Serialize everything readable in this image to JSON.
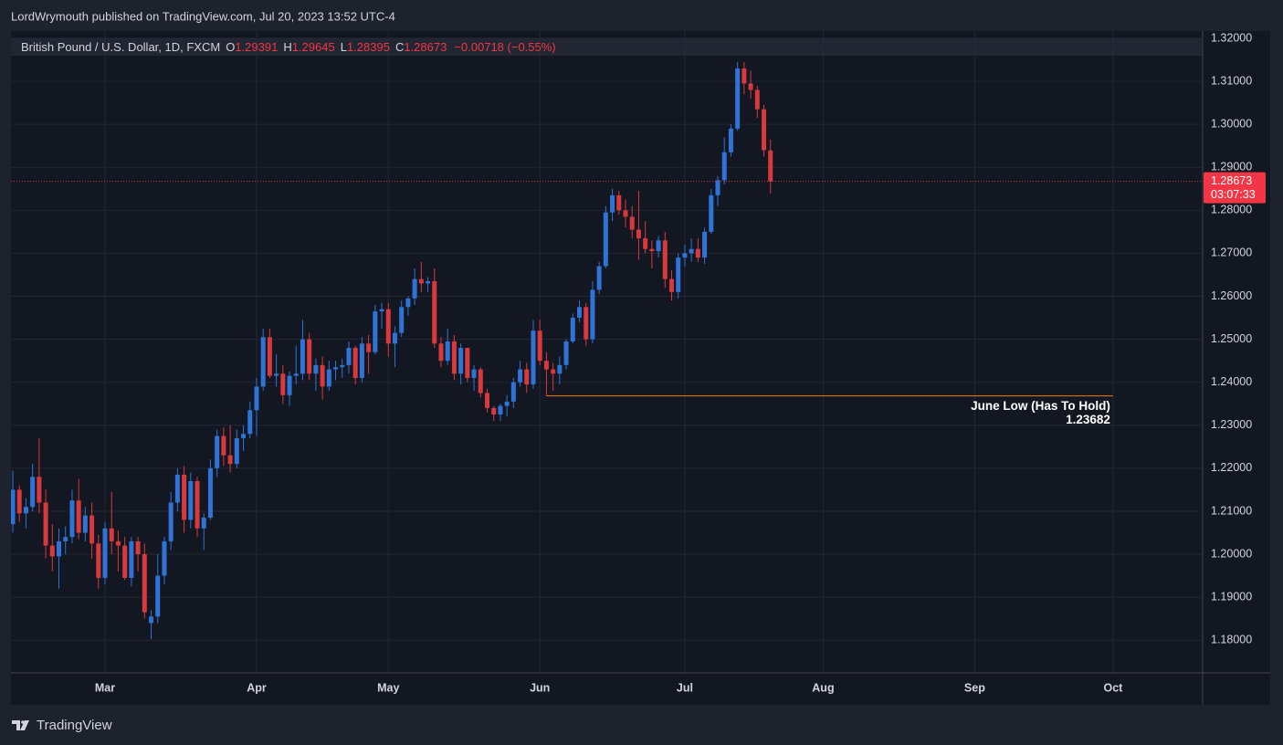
{
  "header": {
    "title": "LordWrymouth published on TradingView.com, Jul 20, 2023 13:52 UTC-4"
  },
  "footer": {
    "brand": "TradingView"
  },
  "chart_data": {
    "type": "candlestick",
    "symbol": "British Pound / U.S. Dollar, 1D, FXCM",
    "legend_labels": [
      "O",
      "H",
      "L",
      "C"
    ],
    "change": "−0.00718 (−0.55%)",
    "countdown": "03:07:33",
    "up_color": "#2f73d6",
    "down_color": "#d8393c",
    "grid": true,
    "ylim": [
      1.1724,
      1.3217
    ],
    "yticks": [
      {
        "value": 1.18,
        "label": "1.18000"
      },
      {
        "value": 1.19,
        "label": "1.19000"
      },
      {
        "value": 1.2,
        "label": "1.20000"
      },
      {
        "value": 1.21,
        "label": "1.21000"
      },
      {
        "value": 1.22,
        "label": "1.22000"
      },
      {
        "value": 1.23,
        "label": "1.23000"
      },
      {
        "value": 1.24,
        "label": "1.24000"
      },
      {
        "value": 1.25,
        "label": "1.25000"
      },
      {
        "value": 1.26,
        "label": "1.26000"
      },
      {
        "value": 1.27,
        "label": "1.27000"
      },
      {
        "value": 1.28,
        "label": "1.28000"
      },
      {
        "value": 1.29,
        "label": "1.29000"
      },
      {
        "value": 1.3,
        "label": "1.30000"
      },
      {
        "value": 1.31,
        "label": "1.31000"
      },
      {
        "value": 1.32,
        "label": "1.32000"
      }
    ],
    "annotation": {
      "text": "June Low (Has To Hold)",
      "value": 1.23682,
      "color": "#f57c00"
    },
    "categories": [
      null,
      null,
      null,
      null,
      null,
      null,
      null,
      null,
      null,
      null,
      null,
      null,
      null,
      null,
      "Mar",
      null,
      null,
      null,
      null,
      null,
      null,
      null,
      null,
      null,
      null,
      null,
      null,
      null,
      null,
      null,
      null,
      null,
      null,
      null,
      null,
      null,
      null,
      "Apr",
      null,
      null,
      null,
      null,
      null,
      null,
      null,
      null,
      null,
      null,
      null,
      null,
      null,
      null,
      null,
      null,
      null,
      null,
      null,
      "May",
      null,
      null,
      null,
      null,
      null,
      null,
      null,
      null,
      null,
      null,
      null,
      null,
      null,
      null,
      null,
      null,
      null,
      null,
      null,
      null,
      null,
      null,
      "Jun",
      null,
      null,
      null,
      null,
      null,
      null,
      null,
      null,
      null,
      null,
      null,
      null,
      null,
      null,
      null,
      null,
      null,
      null,
      null,
      null,
      null,
      "Jul",
      null,
      null,
      null,
      null,
      null,
      null,
      null,
      null,
      null,
      null,
      null,
      null,
      null,
      null,
      null,
      null,
      null,
      null,
      null,
      null,
      "Aug",
      null,
      null,
      null,
      null,
      null,
      null,
      null,
      null,
      null,
      null,
      null,
      null,
      null,
      null,
      null,
      null,
      null,
      null,
      null,
      null,
      null,
      null,
      "Sep",
      null,
      null,
      null,
      null,
      null,
      null,
      null,
      null,
      null,
      null,
      null,
      null,
      null,
      null,
      null,
      null,
      null,
      null,
      null,
      null,
      "Oct"
    ],
    "open": [
      1.207,
      1.215,
      1.2095,
      1.211,
      1.218,
      1.212,
      1.202,
      1.1995,
      1.203,
      1.204,
      1.2125,
      1.205,
      1.209,
      1.2025,
      1.1945,
      1.206,
      1.203,
      1.202,
      1.1945,
      1.203,
      1.2,
      1.184,
      1.1855,
      1.195,
      1.203,
      1.212,
      1.2185,
      1.208,
      1.217,
      1.206,
      1.2085,
      1.22,
      1.2275,
      1.223,
      1.221,
      1.227,
      1.228,
      1.2335,
      1.239,
      1.2505,
      1.2415,
      1.242,
      1.237,
      1.2415,
      1.242,
      1.25,
      1.242,
      1.244,
      1.239,
      1.243,
      1.2435,
      1.244,
      1.248,
      1.241,
      1.249,
      1.247,
      1.2565,
      1.257,
      1.249,
      1.2515,
      1.2575,
      1.2595,
      1.264,
      1.263,
      1.2635,
      1.249,
      1.245,
      1.2495,
      1.242,
      1.248,
      1.241,
      1.243,
      1.2375,
      1.234,
      1.2325,
      1.2345,
      1.2355,
      1.24,
      1.243,
      1.2395,
      1.252,
      1.245,
      1.243,
      1.242,
      1.244,
      1.2495,
      1.255,
      1.2575,
      1.25,
      1.2615,
      1.267,
      1.2795,
      1.2835,
      1.28,
      1.2785,
      1.2755,
      1.2735,
      1.271,
      1.2705,
      1.273,
      1.264,
      1.261,
      1.269,
      1.27,
      1.271,
      1.269,
      1.275,
      1.2835,
      1.287,
      1.2935,
      1.299,
      1.313,
      1.3095,
      1.308,
      1.3035,
      1.29391,
      null,
      null,
      null,
      null,
      null,
      null,
      null,
      null,
      null,
      null,
      null,
      null,
      null,
      null,
      null,
      null,
      null,
      null,
      null,
      null,
      null,
      null,
      null,
      null,
      null,
      null,
      null,
      null,
      null,
      null,
      null,
      null,
      null,
      null,
      null,
      null,
      null,
      null,
      null,
      null,
      null,
      null,
      null,
      null,
      null,
      null,
      null,
      null,
      null,
      null,
      null,
      null
    ],
    "high": [
      1.2195,
      1.216,
      1.213,
      1.221,
      1.227,
      1.215,
      1.207,
      1.206,
      1.2065,
      1.215,
      1.2175,
      1.211,
      1.212,
      1.2045,
      1.2075,
      1.2145,
      1.2055,
      1.204,
      1.204,
      1.204,
      1.2025,
      1.187,
      1.2,
      1.204,
      1.2145,
      1.22,
      1.2205,
      1.219,
      1.218,
      1.2095,
      1.222,
      1.229,
      1.2295,
      1.23,
      1.229,
      1.23,
      1.2355,
      1.241,
      1.2525,
      1.2525,
      1.2465,
      1.244,
      1.2425,
      1.2485,
      1.2545,
      1.2515,
      1.2455,
      1.246,
      1.245,
      1.245,
      1.2455,
      1.2495,
      1.2485,
      1.2505,
      1.251,
      1.258,
      1.2585,
      1.2585,
      1.253,
      1.259,
      1.26,
      1.2665,
      1.268,
      1.2645,
      1.2665,
      1.2505,
      1.2525,
      1.251,
      1.249,
      1.248,
      1.244,
      1.2435,
      1.2385,
      1.2345,
      1.235,
      1.237,
      1.241,
      1.245,
      1.2445,
      1.2545,
      1.2545,
      1.247,
      1.2445,
      1.246,
      1.25,
      1.256,
      1.259,
      1.2585,
      1.2635,
      1.268,
      1.281,
      1.285,
      1.2845,
      1.2825,
      1.281,
      1.2845,
      1.2775,
      1.273,
      1.274,
      1.275,
      1.266,
      1.27,
      1.272,
      1.2735,
      1.2735,
      1.276,
      1.285,
      1.288,
      1.297,
      1.3,
      1.3145,
      1.3145,
      1.3125,
      1.309,
      1.3045,
      1.29645,
      null,
      null,
      null,
      null,
      null,
      null,
      null,
      null,
      null,
      null,
      null,
      null,
      null,
      null,
      null,
      null,
      null,
      null,
      null,
      null,
      null,
      null,
      null,
      null,
      null,
      null,
      null,
      null,
      null,
      null,
      null,
      null,
      null,
      null,
      null,
      null,
      null,
      null,
      null,
      null,
      null,
      null,
      null,
      null,
      null,
      null,
      null,
      null,
      null,
      null,
      null,
      null
    ],
    "low": [
      1.205,
      1.2075,
      1.206,
      1.21,
      1.2095,
      1.199,
      1.196,
      1.192,
      1.2,
      1.2025,
      1.2035,
      1.203,
      1.199,
      1.192,
      1.193,
      1.2,
      1.196,
      1.194,
      1.1925,
      1.196,
      1.185,
      1.1803,
      1.184,
      1.193,
      1.201,
      1.21,
      1.205,
      1.206,
      1.204,
      1.201,
      1.208,
      1.218,
      1.2205,
      1.219,
      1.22,
      1.224,
      1.227,
      1.2275,
      1.238,
      1.241,
      1.239,
      1.235,
      1.2345,
      1.2395,
      1.2405,
      1.2405,
      1.238,
      1.236,
      1.238,
      1.2405,
      1.241,
      1.242,
      1.2395,
      1.24,
      1.242,
      1.2465,
      1.2525,
      1.246,
      1.2435,
      1.2505,
      1.2555,
      1.258,
      1.261,
      1.261,
      1.248,
      1.2435,
      1.244,
      1.2405,
      1.2395,
      1.24,
      1.238,
      1.2365,
      1.233,
      1.231,
      1.231,
      1.232,
      1.234,
      1.239,
      1.2375,
      1.2385,
      1.244,
      1.23682,
      1.238,
      1.2395,
      1.243,
      1.249,
      1.254,
      1.2485,
      1.249,
      1.2605,
      1.2665,
      1.2775,
      1.279,
      1.276,
      1.2735,
      1.2685,
      1.27,
      1.2665,
      1.269,
      1.262,
      1.259,
      1.2595,
      1.267,
      1.268,
      1.268,
      1.2675,
      1.2745,
      1.281,
      1.286,
      1.2925,
      1.2985,
      1.307,
      1.306,
      1.3015,
      1.2925,
      1.28395,
      null,
      null,
      null,
      null,
      null,
      null,
      null,
      null,
      null,
      null,
      null,
      null,
      null,
      null,
      null,
      null,
      null,
      null,
      null,
      null,
      null,
      null,
      null,
      null,
      null,
      null,
      null,
      null,
      null,
      null,
      null,
      null,
      null,
      null,
      null,
      null,
      null,
      null,
      null,
      null,
      null,
      null,
      null,
      null,
      null,
      null,
      null,
      null,
      null,
      null,
      null,
      null
    ],
    "close": [
      1.215,
      1.2095,
      1.211,
      1.218,
      1.212,
      1.202,
      1.1995,
      1.203,
      1.204,
      1.2125,
      1.205,
      1.209,
      1.2025,
      1.1945,
      1.206,
      1.203,
      1.202,
      1.1945,
      1.203,
      1.2,
      1.1865,
      1.1855,
      1.195,
      1.203,
      1.212,
      1.2185,
      1.208,
      1.217,
      1.206,
      1.2085,
      1.22,
      1.2275,
      1.223,
      1.221,
      1.227,
      1.228,
      1.2335,
      1.239,
      1.2505,
      1.2415,
      1.242,
      1.237,
      1.2415,
      1.242,
      1.25,
      1.242,
      1.244,
      1.239,
      1.243,
      1.2435,
      1.244,
      1.248,
      1.241,
      1.249,
      1.247,
      1.2565,
      1.257,
      1.249,
      1.2515,
      1.2575,
      1.2595,
      1.264,
      1.263,
      1.2635,
      1.249,
      1.245,
      1.2495,
      1.242,
      1.248,
      1.241,
      1.243,
      1.2375,
      1.234,
      1.2325,
      1.2345,
      1.2355,
      1.24,
      1.243,
      1.2395,
      1.252,
      1.245,
      1.243,
      1.242,
      1.244,
      1.2495,
      1.255,
      1.2575,
      1.25,
      1.2615,
      1.267,
      1.2795,
      1.2835,
      1.28,
      1.2785,
      1.2755,
      1.2735,
      1.271,
      1.2705,
      1.273,
      1.264,
      1.261,
      1.269,
      1.27,
      1.271,
      1.269,
      1.275,
      1.2835,
      1.287,
      1.2935,
      1.299,
      1.313,
      1.3095,
      1.308,
      1.3035,
      1.294,
      1.28673,
      null,
      null,
      null,
      null,
      null,
      null,
      null,
      null,
      null,
      null,
      null,
      null,
      null,
      null,
      null,
      null,
      null,
      null,
      null,
      null,
      null,
      null,
      null,
      null,
      null,
      null,
      null,
      null,
      null,
      null,
      null,
      null,
      null,
      null,
      null,
      null,
      null,
      null,
      null,
      null,
      null,
      null,
      null,
      null,
      null,
      null,
      null,
      null,
      null,
      null,
      null,
      null
    ]
  }
}
